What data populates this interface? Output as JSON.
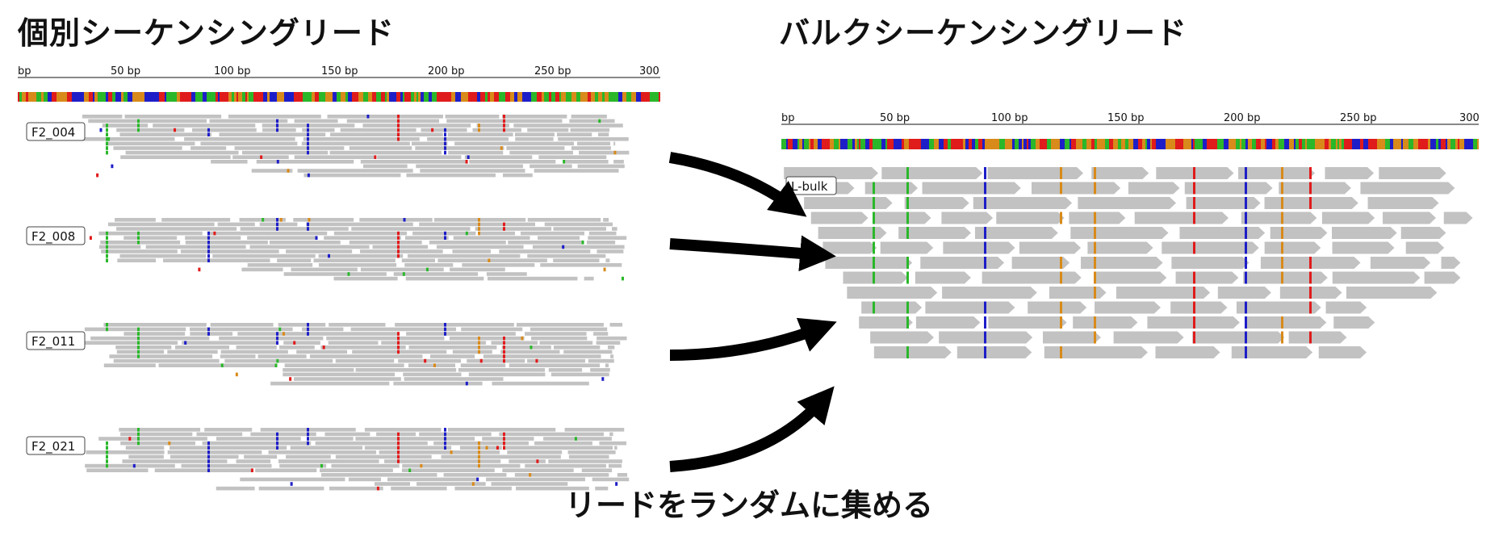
{
  "left_panel": {
    "title": "個別シーケンシングリード",
    "ruler_ticks": [
      "bp",
      "50 bp",
      "100 bp",
      "150 bp",
      "200 bp",
      "250 bp",
      "300"
    ],
    "samples": [
      "F2_004",
      "F2_008",
      "F2_011",
      "F2_021"
    ]
  },
  "right_panel": {
    "title": "バルクシーケンシングリード",
    "ruler_ticks": [
      "bp",
      "50 bp",
      "100 bp",
      "150 bp",
      "200 bp",
      "250 bp",
      "300"
    ],
    "bulk_label": "L-bulk"
  },
  "caption": "リードをランダムに集める",
  "colors": {
    "read": "#c2c2c2",
    "A": "#2ab72a",
    "C": "#1e1ec8",
    "G": "#d88a1a",
    "T": "#e01b1b",
    "arrow": "#000000"
  }
}
